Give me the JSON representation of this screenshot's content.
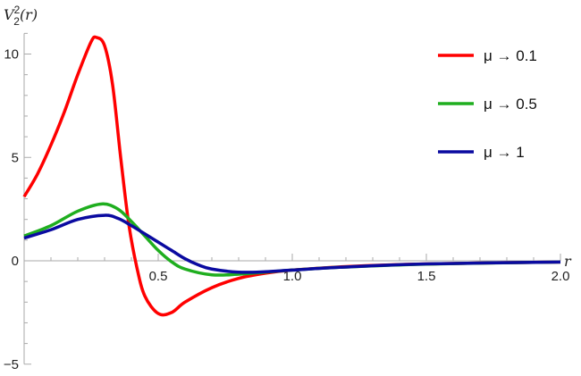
{
  "chart_data": {
    "type": "line",
    "title": "",
    "xlabel": "r",
    "ylabel": "V_2^2(r)",
    "ylabel_parts": {
      "base": "V",
      "sup": "2",
      "sub": "2",
      "arg": "(r)"
    },
    "xlim": [
      0,
      2.0
    ],
    "ylim": [
      -5,
      11
    ],
    "x_ticks": [
      {
        "v": 0.5,
        "label": "0.5"
      },
      {
        "v": 1.0,
        "label": "1.0"
      },
      {
        "v": 1.5,
        "label": "1.5"
      },
      {
        "v": 2.0,
        "label": "2.0"
      }
    ],
    "y_ticks": [
      {
        "v": 10,
        "label": "10"
      },
      {
        "v": 5,
        "label": "5"
      },
      {
        "v": 0,
        "label": "0"
      },
      {
        "v": -5,
        "label": "−5"
      }
    ],
    "grid": false,
    "legend_position": "top-right",
    "series": [
      {
        "name": "μ → 0.1",
        "color": "#ff0000",
        "x": [
          0,
          0.05,
          0.1,
          0.15,
          0.2,
          0.25,
          0.27,
          0.3,
          0.33,
          0.36,
          0.39,
          0.42,
          0.45,
          0.5,
          0.55,
          0.6,
          0.7,
          0.8,
          0.9,
          1.0,
          1.2,
          1.5,
          2.0
        ],
        "y": [
          3.1,
          4.2,
          5.6,
          7.2,
          9.0,
          10.6,
          10.8,
          10.4,
          8.5,
          5.0,
          1.8,
          -0.3,
          -1.7,
          -2.55,
          -2.5,
          -2.0,
          -1.3,
          -0.85,
          -0.6,
          -0.45,
          -0.28,
          -0.15,
          -0.06
        ]
      },
      {
        "name": "μ → 0.5",
        "color": "#1fae1f",
        "x": [
          0,
          0.1,
          0.2,
          0.29,
          0.35,
          0.4,
          0.45,
          0.5,
          0.55,
          0.6,
          0.7,
          0.8,
          0.9,
          1.0,
          1.2,
          1.5,
          2.0
        ],
        "y": [
          1.2,
          1.7,
          2.4,
          2.75,
          2.5,
          1.9,
          1.2,
          0.5,
          -0.05,
          -0.4,
          -0.68,
          -0.65,
          -0.55,
          -0.45,
          -0.3,
          -0.16,
          -0.06
        ]
      },
      {
        "name": "μ → 1",
        "color": "#0a0aa0",
        "x": [
          0,
          0.1,
          0.2,
          0.3,
          0.35,
          0.4,
          0.5,
          0.55,
          0.6,
          0.65,
          0.7,
          0.8,
          0.9,
          1.0,
          1.2,
          1.5,
          2.0
        ],
        "y": [
          1.1,
          1.5,
          2.0,
          2.2,
          2.05,
          1.7,
          0.9,
          0.5,
          0.1,
          -0.2,
          -0.4,
          -0.55,
          -0.53,
          -0.45,
          -0.3,
          -0.15,
          -0.06
        ]
      }
    ]
  }
}
